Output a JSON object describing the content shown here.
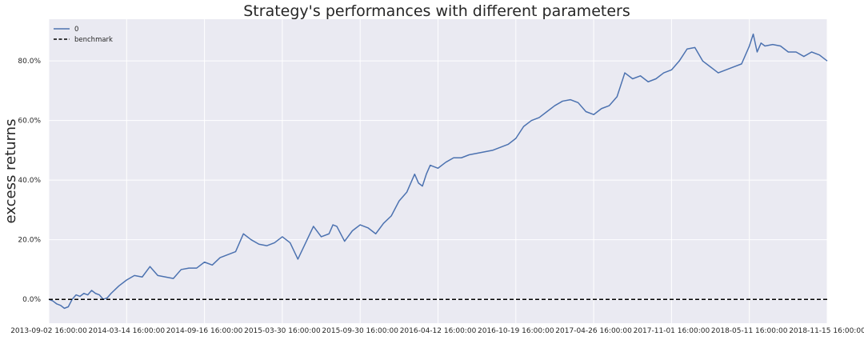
{
  "chart_data": {
    "type": "line",
    "title": "Strategy's performances with different parameters",
    "xlabel": "",
    "ylabel": "excess returns",
    "x_ticks": [
      "2013-09-02 16:00:00",
      "2014-03-14 16:00:00",
      "2014-09-16 16:00:00",
      "2015-03-30 16:00:00",
      "2015-09-30 16:00:00",
      "2016-04-12 16:00:00",
      "2016-10-19 16:00:00",
      "2017-04-26 16:00:00",
      "2017-11-01 16:00:00",
      "2018-05-11 16:00:00",
      "2018-11-15 16:00:00"
    ],
    "y_ticks": [
      "0.0%",
      "20.0%",
      "40.0%",
      "60.0%",
      "80.0%"
    ],
    "y_tick_values": [
      0,
      20,
      40,
      60,
      80
    ],
    "ylim": [
      -8,
      94
    ],
    "xlim": [
      0,
      10
    ],
    "grid": true,
    "legend": "top-left",
    "colors": {
      "series": "#4c72b0",
      "benchmark": "#000000",
      "background": "#eaeaf2",
      "grid": "#ffffff"
    },
    "series": [
      {
        "name": "0",
        "style": "solid",
        "x": [
          0,
          0.05,
          0.1,
          0.15,
          0.2,
          0.25,
          0.3,
          0.35,
          0.4,
          0.45,
          0.5,
          0.55,
          0.6,
          0.65,
          0.7,
          0.75,
          0.8,
          0.9,
          1.0,
          1.1,
          1.2,
          1.3,
          1.4,
          1.5,
          1.6,
          1.7,
          1.8,
          1.9,
          2.0,
          2.1,
          2.2,
          2.3,
          2.4,
          2.5,
          2.6,
          2.7,
          2.8,
          2.9,
          3.0,
          3.1,
          3.2,
          3.3,
          3.4,
          3.5,
          3.6,
          3.65,
          3.7,
          3.8,
          3.9,
          3.95,
          4.0,
          4.1,
          4.2,
          4.3,
          4.4,
          4.5,
          4.6,
          4.7,
          4.75,
          4.8,
          4.85,
          4.9,
          5.0,
          5.1,
          5.2,
          5.3,
          5.4,
          5.5,
          5.6,
          5.7,
          5.8,
          5.9,
          6.0,
          6.1,
          6.2,
          6.3,
          6.4,
          6.5,
          6.6,
          6.7,
          6.8,
          6.9,
          7.0,
          7.1,
          7.2,
          7.3,
          7.4,
          7.5,
          7.6,
          7.7,
          7.8,
          7.9,
          8.0,
          8.1,
          8.2,
          8.3,
          8.4,
          8.5,
          8.6,
          8.7,
          8.8,
          8.9,
          9.0,
          9.05,
          9.1,
          9.15,
          9.2,
          9.3,
          9.4,
          9.5,
          9.6,
          9.7,
          9.8,
          9.9,
          9.95,
          10.0
        ],
        "y": [
          0,
          -0.5,
          -1.5,
          -2,
          -3,
          -2.5,
          0,
          1.5,
          1,
          2,
          1.5,
          3,
          2,
          1.5,
          0,
          0.5,
          2,
          4.5,
          6.5,
          8,
          7.5,
          11,
          8,
          7.5,
          7,
          10,
          10.5,
          10.5,
          12.5,
          11.5,
          14,
          15,
          16,
          22,
          20,
          18.5,
          18,
          19,
          21,
          19,
          13.5,
          19,
          24.5,
          21,
          22,
          25,
          24.5,
          19.5,
          23,
          24,
          25,
          24,
          22,
          25.5,
          28,
          33,
          36,
          42,
          39,
          38,
          42,
          45,
          44,
          46,
          47.5,
          47.5,
          48.5,
          49,
          49.5,
          50,
          51,
          52,
          54,
          58,
          60,
          61,
          63,
          65,
          66.5,
          67,
          66,
          63,
          62,
          64,
          65,
          68,
          76,
          74,
          75,
          73,
          74,
          76,
          77,
          80,
          84,
          84.5,
          80,
          78,
          76,
          77,
          78,
          79,
          85,
          89,
          83,
          86,
          85,
          85.5,
          85,
          83,
          83,
          81.5,
          83,
          82,
          81,
          80
        ]
      },
      {
        "name": "benchmark",
        "style": "dashed",
        "x": [
          0,
          10
        ],
        "y": [
          0,
          0
        ]
      }
    ]
  }
}
